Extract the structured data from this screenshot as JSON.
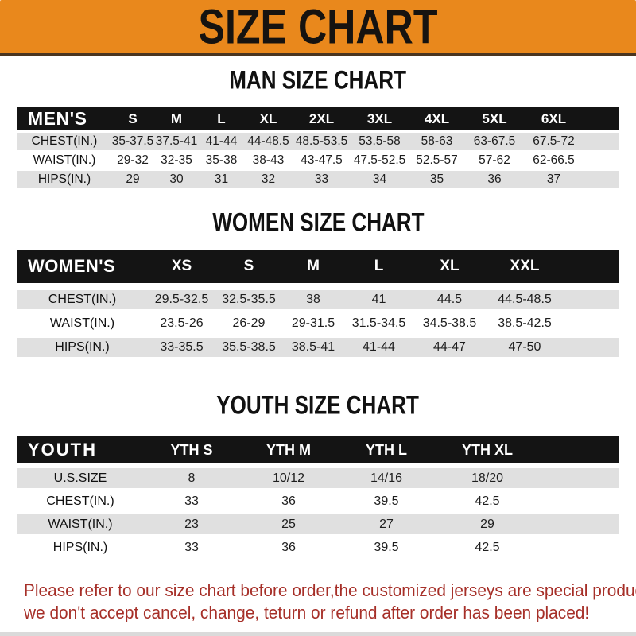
{
  "banner": {
    "title": "SIZE CHART"
  },
  "colors": {
    "banner_bg": "#E9881C",
    "table_header_bg": "#141414",
    "row_alt_bg": "#E0E0E0",
    "note_text": "#A62F28"
  },
  "sections": [
    {
      "title": "MAN SIZE CHART",
      "table": {
        "header": [
          "MEN'S",
          "S",
          "M",
          "L",
          "XL",
          "2XL",
          "3XL",
          "4XL",
          "5XL",
          "6XL"
        ],
        "rows": [
          [
            "CHEST(IN.)",
            "35-37.5",
            "37.5-41",
            "41-44",
            "44-48.5",
            "48.5-53.5",
            "53.5-58",
            "58-63",
            "63-67.5",
            "67.5-72"
          ],
          [
            "WAIST(IN.)",
            "29-32",
            "32-35",
            "35-38",
            "38-43",
            "43-47.5",
            "47.5-52.5",
            "52.5-57",
            "57-62",
            "62-66.5"
          ],
          [
            "HIPS(IN.)",
            "29",
            "30",
            "31",
            "32",
            "33",
            "34",
            "35",
            "36",
            "37"
          ]
        ]
      }
    },
    {
      "title": "WOMEN SIZE CHART",
      "table": {
        "header": [
          "WOMEN'S",
          "XS",
          "S",
          "M",
          "L",
          "XL",
          "XXL"
        ],
        "rows": [
          [
            "CHEST(IN.)",
            "29.5-32.5",
            "32.5-35.5",
            "38",
            "41",
            "44.5",
            "44.5-48.5"
          ],
          [
            "WAIST(IN.)",
            "23.5-26",
            "26-29",
            "29-31.5",
            "31.5-34.5",
            "34.5-38.5",
            "38.5-42.5"
          ],
          [
            "HIPS(IN.)",
            "33-35.5",
            "35.5-38.5",
            "38.5-41",
            "41-44",
            "44-47",
            "47-50"
          ]
        ]
      }
    },
    {
      "title": "YOUTH SIZE CHART",
      "table": {
        "header": [
          "YOUTH",
          "YTH S",
          "YTH M",
          "YTH L",
          "YTH XL"
        ],
        "rows": [
          [
            "U.S.SIZE",
            "8",
            "10/12",
            "14/16",
            "18/20"
          ],
          [
            "CHEST(IN.)",
            "33",
            "36",
            "39.5",
            "42.5"
          ],
          [
            "WAIST(IN.)",
            "23",
            "25",
            "27",
            "29"
          ],
          [
            "HIPS(IN.)",
            "33",
            "36",
            "39.5",
            "42.5"
          ]
        ]
      }
    }
  ],
  "note": {
    "line1": "Please refer to our size chart before order,the customized jerseys are special products,",
    "line2": "we don't accept cancel, change, teturn or refund after order has been placed!"
  }
}
